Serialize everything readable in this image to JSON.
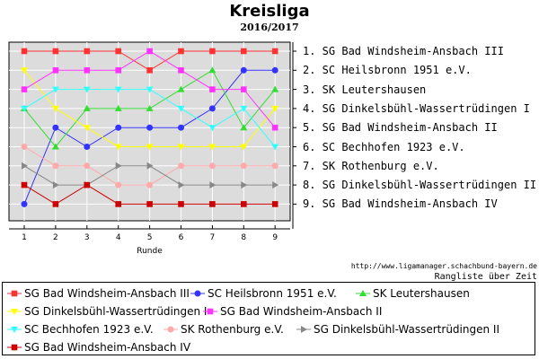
{
  "chart_data": {
    "type": "line",
    "title": "Kreisliga",
    "subtitle": "2016/2017",
    "xlabel": "Runde",
    "x": [
      1,
      2,
      3,
      4,
      5,
      6,
      7,
      8,
      9
    ],
    "ylim": [
      1,
      9
    ],
    "y_inverted": true,
    "grid": true,
    "legend_position": "bottom",
    "series": [
      {
        "name": "SG Bad Windsheim-Ansbach III",
        "color": "#ff3333",
        "marker": "square",
        "values": [
          1,
          1,
          1,
          1,
          2,
          1,
          1,
          1,
          1
        ]
      },
      {
        "name": "SC Heilsbronn 1951 e.V.",
        "color": "#3333ff",
        "marker": "circle",
        "values": [
          9,
          5,
          6,
          5,
          5,
          5,
          4,
          2,
          2
        ]
      },
      {
        "name": "SK Leutershausen",
        "color": "#33dd33",
        "marker": "triangle-up",
        "values": [
          4,
          6,
          4,
          4,
          4,
          3,
          2,
          5,
          3
        ]
      },
      {
        "name": "SG Dinkelsbühl-Wassertrüdingen I",
        "color": "#ffff00",
        "marker": "triangle-down",
        "values": [
          2,
          4,
          5,
          6,
          6,
          6,
          6,
          6,
          4
        ]
      },
      {
        "name": "SG Bad Windsheim-Ansbach II",
        "color": "#ff33ff",
        "marker": "square",
        "values": [
          3,
          2,
          2,
          2,
          1,
          2,
          3,
          3,
          5
        ]
      },
      {
        "name": "SC Bechhofen 1923 e.V.",
        "color": "#33ffff",
        "marker": "triangle-down",
        "values": [
          4,
          3,
          3,
          3,
          3,
          4,
          5,
          4,
          6
        ]
      },
      {
        "name": "SK Rothenburg e.V.",
        "color": "#ffaaaa",
        "marker": "circle",
        "values": [
          6,
          7,
          7,
          8,
          8,
          7,
          7,
          7,
          7
        ]
      },
      {
        "name": "SG Dinkelsbühl-Wassertrüdingen II",
        "color": "#888888",
        "marker": "triangle-right",
        "values": [
          7,
          8,
          8,
          7,
          7,
          8,
          8,
          8,
          8
        ]
      },
      {
        "name": "SG Bad Windsheim-Ansbach IV",
        "color": "#cc0000",
        "marker": "square",
        "values": [
          8,
          9,
          8,
          9,
          9,
          9,
          9,
          9,
          9
        ]
      }
    ]
  },
  "ranking": [
    "1. SG Bad Windsheim-Ansbach III",
    "2. SC Heilsbronn 1951 e.V.",
    "3. SK Leutershausen",
    "4. SG Dinkelsbühl-Wassertrüdingen I",
    "5. SG Bad Windsheim-Ansbach II",
    "6. SC Bechhofen 1923 e.V.",
    "7. SK Rothenburg e.V.",
    "8. SG Dinkelsbühl-Wassertrüdingen II",
    "9. SG Bad Windsheim-Ansbach IV"
  ],
  "url": "http://www.ligamanager.schachbund-bayern.de",
  "caption": "Rangliste über Zeit"
}
